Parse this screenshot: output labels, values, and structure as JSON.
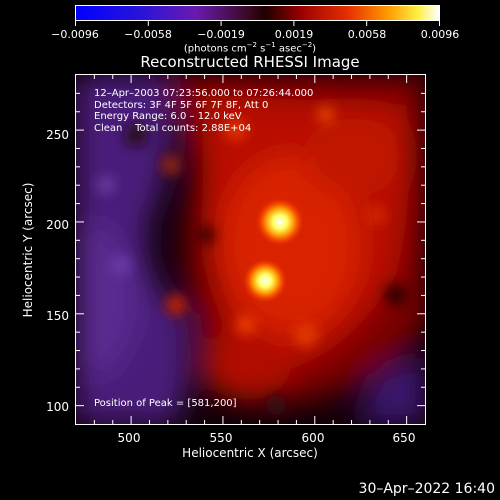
{
  "colorbar": {
    "labels": [
      "−0.0096",
      "−0.0058",
      "−0.0019",
      "0.0019",
      "0.0058",
      "0.0096"
    ],
    "units_text": "(photons cm",
    "units_exp1": "−2",
    "units_mid1": " s",
    "units_exp2": "−1",
    "units_mid2": " asec",
    "units_exp3": "−2",
    "units_end": ")"
  },
  "title": "Reconstructed RHESSI Image",
  "info": {
    "time": "12–Apr–2003 07:23:56.000 to 07:26:44.000",
    "detectors": "Detectors: 3F 4F 5F 6F 7F 8F, Att 0",
    "energy": "Energy Range: 6.0 – 12.0 keV",
    "clean": "Clean    Total counts: 2.88E+04"
  },
  "peak": "Position of Peak = [581,200]",
  "axes": {
    "xlabel": "Heliocentric X (arcsec)",
    "ylabel": "Heliocentric Y (arcsec)",
    "xticks": [
      "500",
      "550",
      "600",
      "650"
    ],
    "yticks": [
      "250",
      "200",
      "150",
      "100"
    ],
    "xrange": [
      470,
      660
    ],
    "yrange": [
      90,
      280
    ]
  },
  "footer_date": "30–Apr–2022 16:40",
  "colors": {
    "background": "#000000",
    "axis": "#ffffff"
  }
}
